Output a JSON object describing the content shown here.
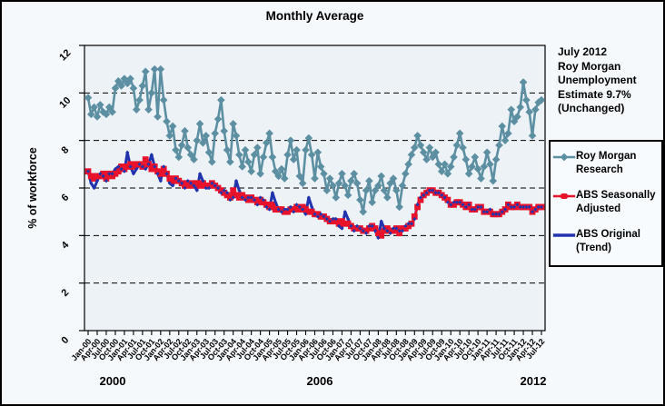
{
  "annotation": {
    "lines": [
      "July 2012",
      "Roy Morgan",
      "Unemployment",
      "Estimate 9.7%",
      "(Unchanged)"
    ]
  },
  "chart_data": {
    "type": "line",
    "title": "Monthly Average",
    "xlabel": "",
    "ylabel": "% of workforce",
    "ylim": [
      0,
      12
    ],
    "ytick_step": 2,
    "grid": "horizontal dashed at 2,4,6,8,10",
    "legend_position": "right",
    "year_labels": [
      "2000",
      "2006",
      "2012"
    ],
    "x_tick_labels": [
      "Jan-00",
      "Apr-00",
      "Jul-00",
      "Oct-00",
      "Jan-01",
      "Apr-01",
      "Jul-01",
      "Oct-01",
      "Jan-02",
      "Apr-02",
      "Jul-02",
      "Oct-02",
      "Jan-03",
      "Apr-03",
      "Jul-03",
      "Oct-03",
      "Jan-04",
      "Apr-04",
      "Jul-04",
      "Oct-04",
      "Jan-05",
      "Apr-05",
      "Jul-05",
      "Oct-05",
      "Jan-06",
      "Apr-06",
      "Jul-06",
      "Oct-06",
      "Jan-07",
      "Apr-07",
      "Jul-07",
      "Oct-07",
      "Jan-08",
      "Apr-08",
      "Jul-08",
      "Oct-08",
      "Jan-09",
      "Apr-09",
      "Jul-09",
      "Oct-09",
      "Jan-10",
      "Apr-10",
      "Jul-10",
      "Oct-10",
      "Jan-11",
      "Apr-11",
      "Jul-11",
      "Oct-11",
      "Jan-12",
      "Apr-12",
      "Jul-12"
    ],
    "x_is_monthly": true,
    "x_range": [
      "Jan-00",
      "Jul-12"
    ],
    "colors": {
      "plot_bg": "#edf2f7",
      "page_bg": "#f5f9fc",
      "axis": "#000000"
    },
    "series": [
      {
        "name": "Roy Morgan Research",
        "color": "#5d8fa2",
        "marker": "diamond",
        "values": [
          9.8,
          9.1,
          9.4,
          9.0,
          9.5,
          9.2,
          9.1,
          9.4,
          9.2,
          10.2,
          10.5,
          10.3,
          10.6,
          10.4,
          10.6,
          10.2,
          9.3,
          9.7,
          10.3,
          10.9,
          9.3,
          10.0,
          11.0,
          9.0,
          11.0,
          9.7,
          8.8,
          8.2,
          8.6,
          7.6,
          7.3,
          7.8,
          8.4,
          7.7,
          7.4,
          7.2,
          8.0,
          8.7,
          7.9,
          8.2,
          7.5,
          7.1,
          8.3,
          8.9,
          9.7,
          8.4,
          7.6,
          7.1,
          8.7,
          8.2,
          7.4,
          6.9,
          7.6,
          7.1,
          6.7,
          7.4,
          7.7,
          6.6,
          7.3,
          7.9,
          8.3,
          7.3,
          6.7,
          6.5,
          6.8,
          6.4,
          7.4,
          8.0,
          7.2,
          7.6,
          6.5,
          6.2,
          7.6,
          8.1,
          7.4,
          6.4,
          7.5,
          6.9,
          6.6,
          5.9,
          6.4,
          6.1,
          5.6,
          6.2,
          6.6,
          6.1,
          5.7,
          6.3,
          6.6,
          6.2,
          5.5,
          5.0,
          5.9,
          6.3,
          5.4,
          5.9,
          6.1,
          6.5,
          5.9,
          5.6,
          6.2,
          6.4,
          5.9,
          5.2,
          6.1,
          6.6,
          7.0,
          7.4,
          7.7,
          8.2,
          7.8,
          7.5,
          7.2,
          7.7,
          7.3,
          7.5,
          7.0,
          6.7,
          7.0,
          6.6,
          6.9,
          7.3,
          7.8,
          8.3,
          7.7,
          7.2,
          6.6,
          6.9,
          7.3,
          6.8,
          6.4,
          6.9,
          7.5,
          7.0,
          6.3,
          7.2,
          7.8,
          8.6,
          8.0,
          8.3,
          9.3,
          8.8,
          9.0,
          9.4,
          10.45,
          9.7,
          9.2,
          8.2,
          9.3,
          9.6,
          9.7
        ]
      },
      {
        "name": "ABS Seasonally Adjusted",
        "color": "#e8132b",
        "marker": "square",
        "values": [
          6.7,
          6.5,
          6.4,
          6.5,
          6.5,
          6.6,
          6.4,
          6.6,
          6.5,
          6.6,
          6.7,
          6.9,
          6.8,
          6.9,
          7.0,
          6.9,
          7.0,
          7.0,
          6.9,
          7.2,
          7.0,
          6.8,
          6.9,
          6.7,
          6.6,
          6.8,
          6.6,
          6.4,
          6.3,
          6.4,
          6.3,
          6.2,
          6.1,
          6.2,
          6.1,
          6.2,
          6.2,
          6.1,
          6.2,
          6.1,
          6.1,
          6.2,
          6.1,
          6.0,
          5.9,
          5.8,
          5.7,
          5.6,
          5.9,
          5.7,
          5.6,
          5.7,
          5.6,
          5.5,
          5.6,
          5.5,
          5.4,
          5.5,
          5.4,
          5.3,
          5.2,
          5.3,
          5.1,
          5.1,
          5.1,
          5.0,
          5.0,
          5.1,
          5.1,
          5.2,
          5.1,
          5.2,
          5.1,
          5.0,
          5.0,
          4.9,
          4.9,
          4.8,
          4.8,
          4.7,
          4.6,
          4.6,
          4.6,
          4.5,
          4.6,
          4.5,
          4.5,
          4.4,
          4.3,
          4.3,
          4.3,
          4.2,
          4.2,
          4.3,
          4.4,
          4.3,
          4.1,
          4.0,
          4.2,
          4.3,
          4.2,
          4.2,
          4.3,
          4.1,
          4.3,
          4.3,
          4.4,
          4.5,
          4.8,
          5.2,
          5.5,
          5.7,
          5.8,
          5.9,
          5.9,
          5.8,
          5.8,
          5.7,
          5.6,
          5.5,
          5.3,
          5.3,
          5.4,
          5.4,
          5.3,
          5.2,
          5.3,
          5.1,
          5.1,
          5.2,
          5.2,
          5.0,
          5.0,
          5.0,
          4.9,
          4.9,
          4.9,
          5.0,
          5.1,
          5.3,
          5.2,
          5.2,
          5.3,
          5.2,
          5.2,
          5.2,
          5.2,
          5.0,
          5.1,
          5.2,
          5.2
        ]
      },
      {
        "name": "ABS Original (Trend)",
        "color": "#2134ae",
        "marker": "dot",
        "values": [
          6.7,
          6.2,
          6.0,
          6.3,
          6.6,
          6.5,
          6.3,
          6.6,
          6.6,
          6.8,
          6.9,
          6.8,
          6.7,
          7.5,
          6.9,
          6.6,
          6.8,
          7.0,
          6.9,
          6.8,
          7.0,
          7.4,
          6.9,
          6.6,
          6.3,
          6.9,
          6.6,
          6.2,
          6.1,
          6.4,
          6.3,
          6.2,
          6.0,
          6.3,
          6.2,
          6.1,
          5.9,
          6.6,
          6.3,
          6.0,
          6.0,
          6.2,
          6.1,
          6.0,
          5.8,
          5.9,
          5.8,
          5.5,
          5.6,
          6.3,
          5.9,
          5.6,
          5.5,
          5.6,
          5.6,
          5.5,
          5.3,
          5.6,
          5.5,
          5.2,
          5.1,
          5.8,
          5.4,
          5.1,
          5.0,
          5.1,
          5.1,
          5.2,
          5.0,
          5.3,
          5.2,
          5.1,
          4.9,
          5.6,
          5.2,
          4.9,
          4.8,
          4.9,
          4.8,
          4.7,
          4.6,
          4.7,
          4.7,
          4.4,
          4.3,
          5.0,
          4.7,
          4.4,
          4.2,
          4.4,
          4.3,
          4.2,
          4.1,
          4.4,
          4.4,
          4.2,
          3.9,
          4.6,
          4.3,
          4.2,
          4.1,
          4.3,
          4.3,
          4.2,
          4.2,
          4.4,
          4.5,
          4.5,
          4.7,
          5.3,
          5.6,
          5.7,
          5.8,
          5.9,
          5.9,
          5.8,
          5.8,
          5.7,
          5.6,
          5.4,
          5.3,
          5.4,
          5.4,
          5.4,
          5.3,
          5.2,
          5.3,
          5.1,
          5.1,
          5.2,
          5.2,
          5.0,
          5.0,
          5.1,
          4.9,
          4.9,
          4.9,
          5.0,
          5.1,
          5.3,
          5.2,
          5.2,
          5.3,
          5.2,
          5.2,
          5.2,
          5.2,
          5.0,
          5.1,
          5.2,
          5.2
        ]
      }
    ]
  }
}
